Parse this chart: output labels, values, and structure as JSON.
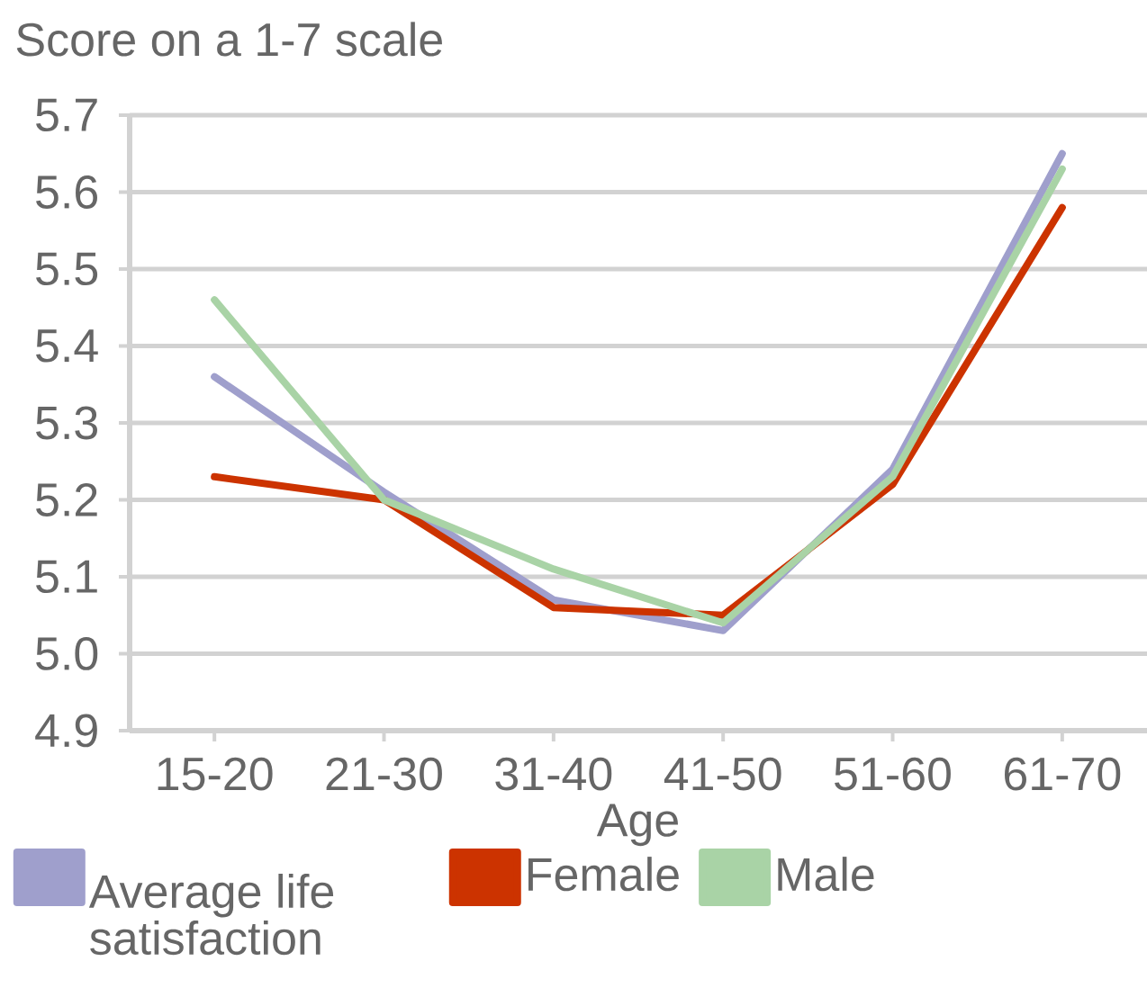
{
  "chart_data": {
    "type": "line",
    "title": "Score on a 1-7 scale",
    "xlabel": "Age",
    "categories": [
      "15-20",
      "21-30",
      "31-40",
      "41-50",
      "51-60",
      "61-70"
    ],
    "series": [
      {
        "name": "Average life satisfaction",
        "color": "#9f9fcc",
        "values": [
          5.36,
          5.21,
          5.07,
          5.03,
          5.24,
          5.65
        ]
      },
      {
        "name": "Female",
        "color": "#cc3300",
        "values": [
          5.23,
          5.2,
          5.06,
          5.05,
          5.22,
          5.58
        ]
      },
      {
        "name": "Male",
        "color": "#a9d3a6",
        "values": [
          5.46,
          5.2,
          5.11,
          5.04,
          5.23,
          5.63
        ]
      }
    ],
    "ylim": [
      4.9,
      5.7
    ],
    "yticks": [
      4.9,
      {
        "value": 5.0,
        "label": "5.0"
      },
      5.1,
      5.2,
      5.3,
      5.4,
      5.5,
      5.6,
      5.7
    ],
    "grid": "y",
    "legend": "bottom",
    "marker": "none",
    "line_style": "solid"
  }
}
